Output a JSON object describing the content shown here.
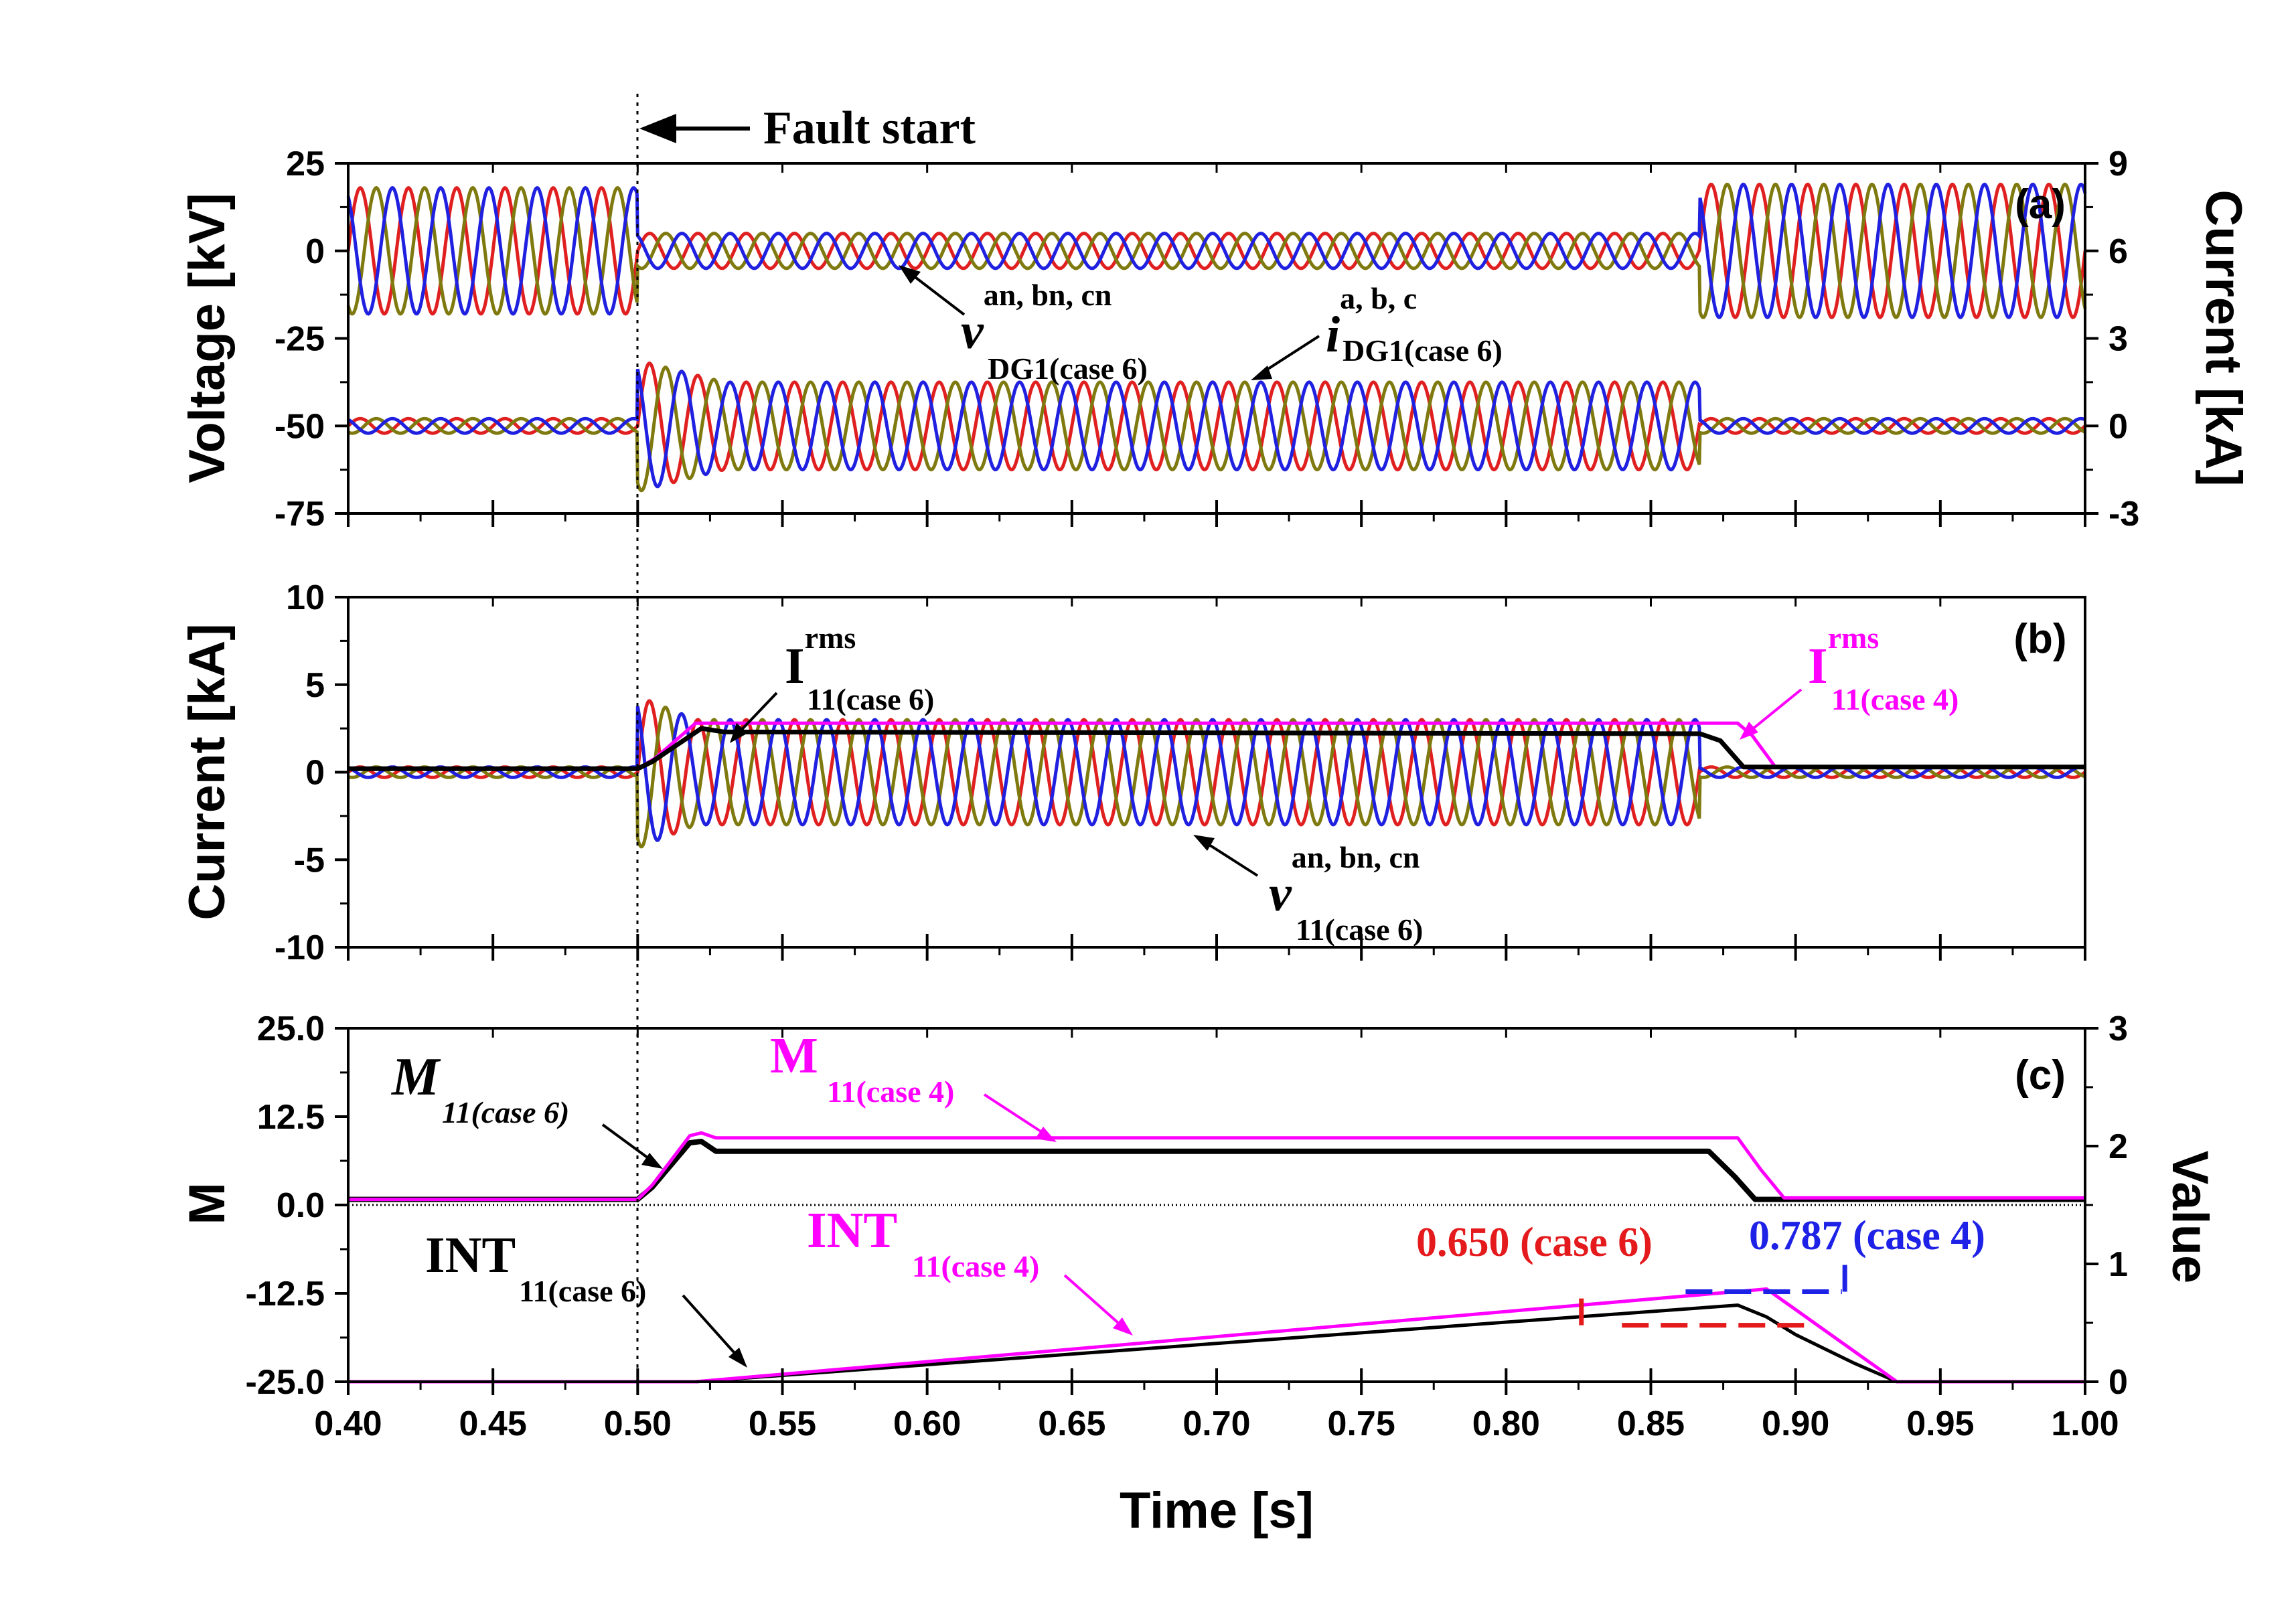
{
  "chart_data": [
    {
      "panel": "(a)",
      "type": "line",
      "ylabel": "Voltage [kV]",
      "y2label": "Current [kA]",
      "xlim": [
        0.4,
        1.0
      ],
      "ylim": [
        -75,
        25
      ],
      "y2lim": [
        -3,
        9
      ],
      "yticks": [
        "25",
        "0",
        "-25",
        "-50",
        "-75"
      ],
      "y2ticks": [
        "9",
        "6",
        "3",
        "0",
        "-3"
      ],
      "series": [
        {
          "group": "voltage a,b,c (DG1, case 6)",
          "colors": [
            "#e02020",
            "#7f7a10",
            "#2020e0"
          ],
          "pre_fault_amp_kV": 18,
          "fault_amp_kV": 5,
          "post_fault_amp_kV": 19,
          "fault_window": [
            0.5,
            0.867
          ]
        },
        {
          "group": "current a,b,c (DG1, case 6)",
          "colors": [
            "#e02020",
            "#7f7a10",
            "#2020e0"
          ],
          "pre_fault_amp_kA": 0.25,
          "fault_amp_kA": 1.5,
          "post_fault_amp_kA": 0.25,
          "fault_window": [
            0.5,
            0.867
          ]
        }
      ],
      "annotations": {
        "voltage": {
          "main": "v",
          "sup": "an, bn, cn",
          "sub": "DG1(case 6)"
        },
        "current": {
          "main": "i",
          "sup": "a, b, c",
          "sub": "DG1(case 6)"
        }
      }
    },
    {
      "panel": "(b)",
      "type": "line",
      "ylabel": "Current [kA]",
      "xlim": [
        0.4,
        1.0
      ],
      "ylim": [
        -10,
        10
      ],
      "yticks": [
        "10",
        "5",
        "0",
        "-5",
        "-10"
      ],
      "series": [
        {
          "group": "phase currents 11 (case 6)",
          "colors": [
            "#e02020",
            "#7f7a10",
            "#2020e0"
          ],
          "pre_fault_amp_kA": 0.3,
          "fault_amp_kA": 3.0,
          "post_fault_amp_kA": 0.3,
          "fault_window": [
            0.5,
            0.867
          ]
        },
        {
          "name": "I rms 11 (case 6)",
          "color": "#000000",
          "x": [
            0.4,
            0.5,
            0.505,
            0.522,
            0.53,
            0.867,
            0.874,
            0.882,
            1.0
          ],
          "y": [
            0.2,
            0.2,
            0.6,
            2.5,
            2.3,
            2.2,
            1.8,
            0.3,
            0.3
          ]
        },
        {
          "name": "I rms 11 (case 4)",
          "color": "#ff00ff",
          "x": [
            0.4,
            0.5,
            0.506,
            0.52,
            0.88,
            0.885,
            0.893,
            1.0
          ],
          "y": [
            0.2,
            0.2,
            0.8,
            2.8,
            2.8,
            2.1,
            0.3,
            0.3
          ]
        }
      ],
      "annotations": {
        "irms6": {
          "main": "I",
          "sup": "rms",
          "sub": "11(case 6)"
        },
        "irms4": {
          "main": "I",
          "sup": "rms",
          "sub": "11(case 4)"
        },
        "v11": {
          "main": "v",
          "sup": "an, bn, cn",
          "sub": "11(case 6)"
        }
      }
    },
    {
      "panel": "(c)",
      "type": "line",
      "ylabel": "M",
      "y2label": "Value",
      "xlabel": "Time [s]",
      "xlim": [
        0.4,
        1.0
      ],
      "ylim": [
        -25.0,
        25.0
      ],
      "y2lim": [
        0,
        3
      ],
      "xticks": [
        "0.40",
        "0.45",
        "0.50",
        "0.55",
        "0.60",
        "0.65",
        "0.70",
        "0.75",
        "0.80",
        "0.85",
        "0.90",
        "0.95",
        "1.00"
      ],
      "yticks": [
        "25.0",
        "12.5",
        "0.0",
        "-12.5",
        "-25.0"
      ],
      "y2ticks": [
        "3",
        "2",
        "1",
        "0"
      ],
      "series": [
        {
          "name": "M 11 (case 6)",
          "color": "#000000",
          "axis": "left",
          "x": [
            0.4,
            0.5,
            0.505,
            0.518,
            0.522,
            0.527,
            0.87,
            0.879,
            0.886,
            1.0
          ],
          "y": [
            0.8,
            0.8,
            2.5,
            8.8,
            9.0,
            7.6,
            7.6,
            4.0,
            0.8,
            0.8
          ]
        },
        {
          "name": "M 11 (case 4)",
          "color": "#ff00ff",
          "axis": "left",
          "x": [
            0.4,
            0.5,
            0.505,
            0.518,
            0.522,
            0.527,
            0.88,
            0.888,
            0.896,
            1.0
          ],
          "y": [
            0.8,
            0.8,
            2.8,
            9.8,
            10.2,
            9.5,
            9.5,
            5.0,
            1.0,
            1.0
          ]
        },
        {
          "name": "INT 11 (case 6)",
          "color": "#000000",
          "axis": "right",
          "x": [
            0.4,
            0.52,
            0.88,
            0.89,
            0.9,
            0.91,
            0.92,
            0.935,
            1.0
          ],
          "y": [
            0,
            0,
            0.65,
            0.55,
            0.4,
            0.28,
            0.16,
            0,
            0
          ]
        },
        {
          "name": "INT 11 (case 4)",
          "color": "#ff00ff",
          "axis": "right",
          "x": [
            0.4,
            0.52,
            0.89,
            0.935,
            1.0
          ],
          "y": [
            0,
            0,
            0.787,
            0,
            0
          ]
        }
      ],
      "levels": [
        {
          "label": "0.650 (case 6)",
          "value": 0.65,
          "color": "#e41a1c"
        },
        {
          "label": "0.787 (case 4)",
          "value": 0.787,
          "color": "#1e22e6"
        }
      ],
      "annotations": {
        "m6": {
          "main": "M",
          "sub": "11(case 6)"
        },
        "m4": {
          "main": "M",
          "sub": "11(case 4)"
        },
        "int6": {
          "main": "INT",
          "sub": "11(case 6)"
        },
        "int4": {
          "main": "INT",
          "sub": "11(case 4)"
        }
      }
    }
  ],
  "fault": {
    "label": "Fault start",
    "time": 0.5
  }
}
